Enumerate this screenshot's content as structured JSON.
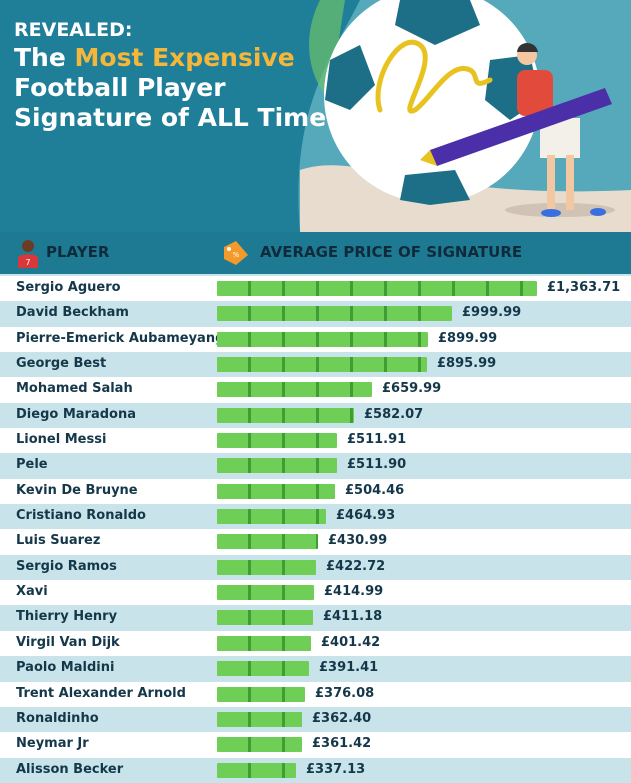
{
  "header": {
    "line1": "REVEALED:",
    "line2_pre": "The ",
    "line2_highlight": "Most Expensive",
    "line3": "Football Player",
    "line4": "Signature of ALL Time"
  },
  "columns": {
    "player": "PLAYER",
    "price": "AVERAGE PRICE OF SIGNATURE"
  },
  "colors": {
    "header_bg": "#1f7f99",
    "highlight": "#f4b73a",
    "bar": "#6fce55"
  },
  "chart_data": {
    "type": "bar",
    "orientation": "horizontal",
    "categories": [
      "Sergio Aguero",
      "David Beckham",
      "Pierre-Emerick Aubameyang",
      "George Best",
      "Mohamed Salah",
      "Diego Maradona",
      "Lionel Messi",
      "Pele",
      "Kevin De Bruyne",
      "Cristiano Ronaldo",
      "Luis Suarez",
      "Sergio Ramos",
      "Xavi",
      "Thierry Henry",
      "Virgil Van Dijk",
      "Paolo Maldini",
      "Trent Alexander Arnold",
      "Ronaldinho",
      "Neymar Jr",
      "Alisson Becker"
    ],
    "values": [
      1363.71,
      999.99,
      899.99,
      895.99,
      659.99,
      582.07,
      511.91,
      511.9,
      504.46,
      464.93,
      430.99,
      422.72,
      414.99,
      411.18,
      401.42,
      391.41,
      376.08,
      362.4,
      361.42,
      337.13
    ],
    "labels": [
      "£1,363.71",
      "£999.99",
      "£899.99",
      "£895.99",
      "£659.99",
      "£582.07",
      "£511.91",
      "£511.90",
      "£504.46",
      "£464.93",
      "£430.99",
      "£422.72",
      "£414.99",
      "£411.18",
      "£401.42",
      "£391.41",
      "£376.08",
      "£362.40",
      "£361.42",
      "£337.13"
    ]
  }
}
